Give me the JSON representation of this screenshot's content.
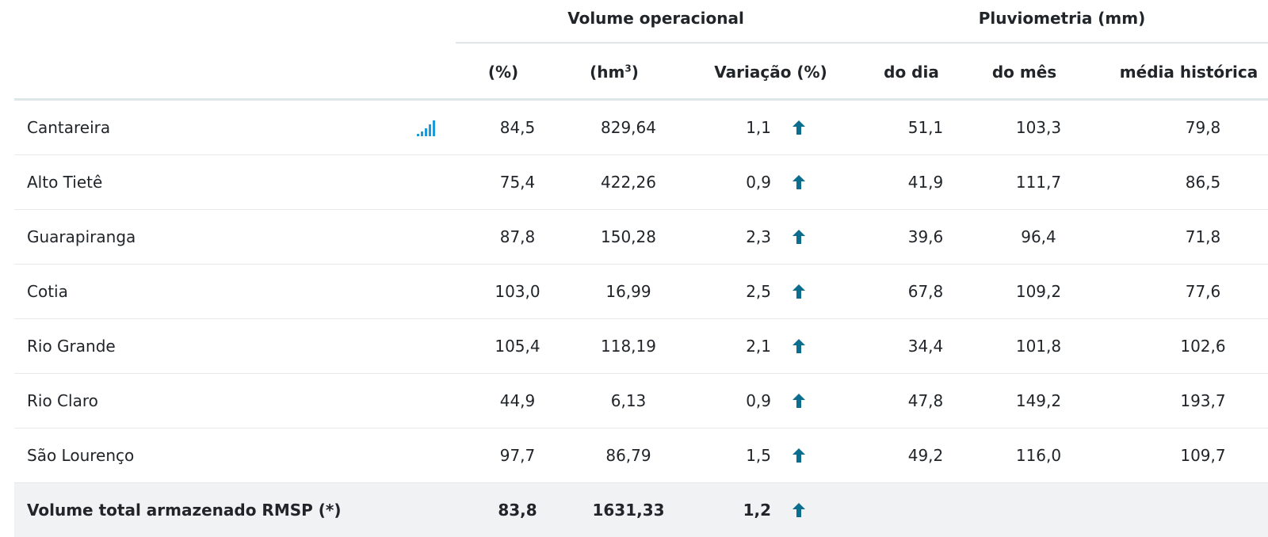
{
  "groups": {
    "volume": "Volume operacional",
    "pluvio": "Pluviometria (mm)"
  },
  "columns": {
    "pct": "(%)",
    "hm_base": "(hm",
    "hm_sup": "3",
    "hm_close": ")",
    "variacao": "Variação (%)",
    "do_dia": "do dia",
    "do_mes": "do mês",
    "media": "média histórica"
  },
  "colors": {
    "arrow": "#0b6e8f",
    "chart_icon": "#1e9bd7",
    "total_bg": "#f1f2f3"
  },
  "rows": [
    {
      "name": "Cantareira",
      "pct": "84,5",
      "hm": "829,64",
      "var": "1,1",
      "dia": "51,1",
      "mes": "103,3",
      "media": "79,8",
      "has_chart": true
    },
    {
      "name": "Alto Tietê",
      "pct": "75,4",
      "hm": "422,26",
      "var": "0,9",
      "dia": "41,9",
      "mes": "111,7",
      "media": "86,5"
    },
    {
      "name": "Guarapiranga",
      "pct": "87,8",
      "hm": "150,28",
      "var": "2,3",
      "dia": "39,6",
      "mes": "96,4",
      "media": "71,8"
    },
    {
      "name": "Cotia",
      "pct": "103,0",
      "hm": "16,99",
      "var": "2,5",
      "dia": "67,8",
      "mes": "109,2",
      "media": "77,6"
    },
    {
      "name": "Rio Grande",
      "pct": "105,4",
      "hm": "118,19",
      "var": "2,1",
      "dia": "34,4",
      "mes": "101,8",
      "media": "102,6"
    },
    {
      "name": "Rio Claro",
      "pct": "44,9",
      "hm": "6,13",
      "var": "0,9",
      "dia": "47,8",
      "mes": "149,2",
      "media": "193,7"
    },
    {
      "name": "São Lourenço",
      "pct": "97,7",
      "hm": "86,79",
      "var": "1,5",
      "dia": "49,2",
      "mes": "116,0",
      "media": "109,7"
    }
  ],
  "total": {
    "name": "Volume total armazenado RMSP (*)",
    "pct": "83,8",
    "hm": "1631,33",
    "var": "1,2"
  }
}
